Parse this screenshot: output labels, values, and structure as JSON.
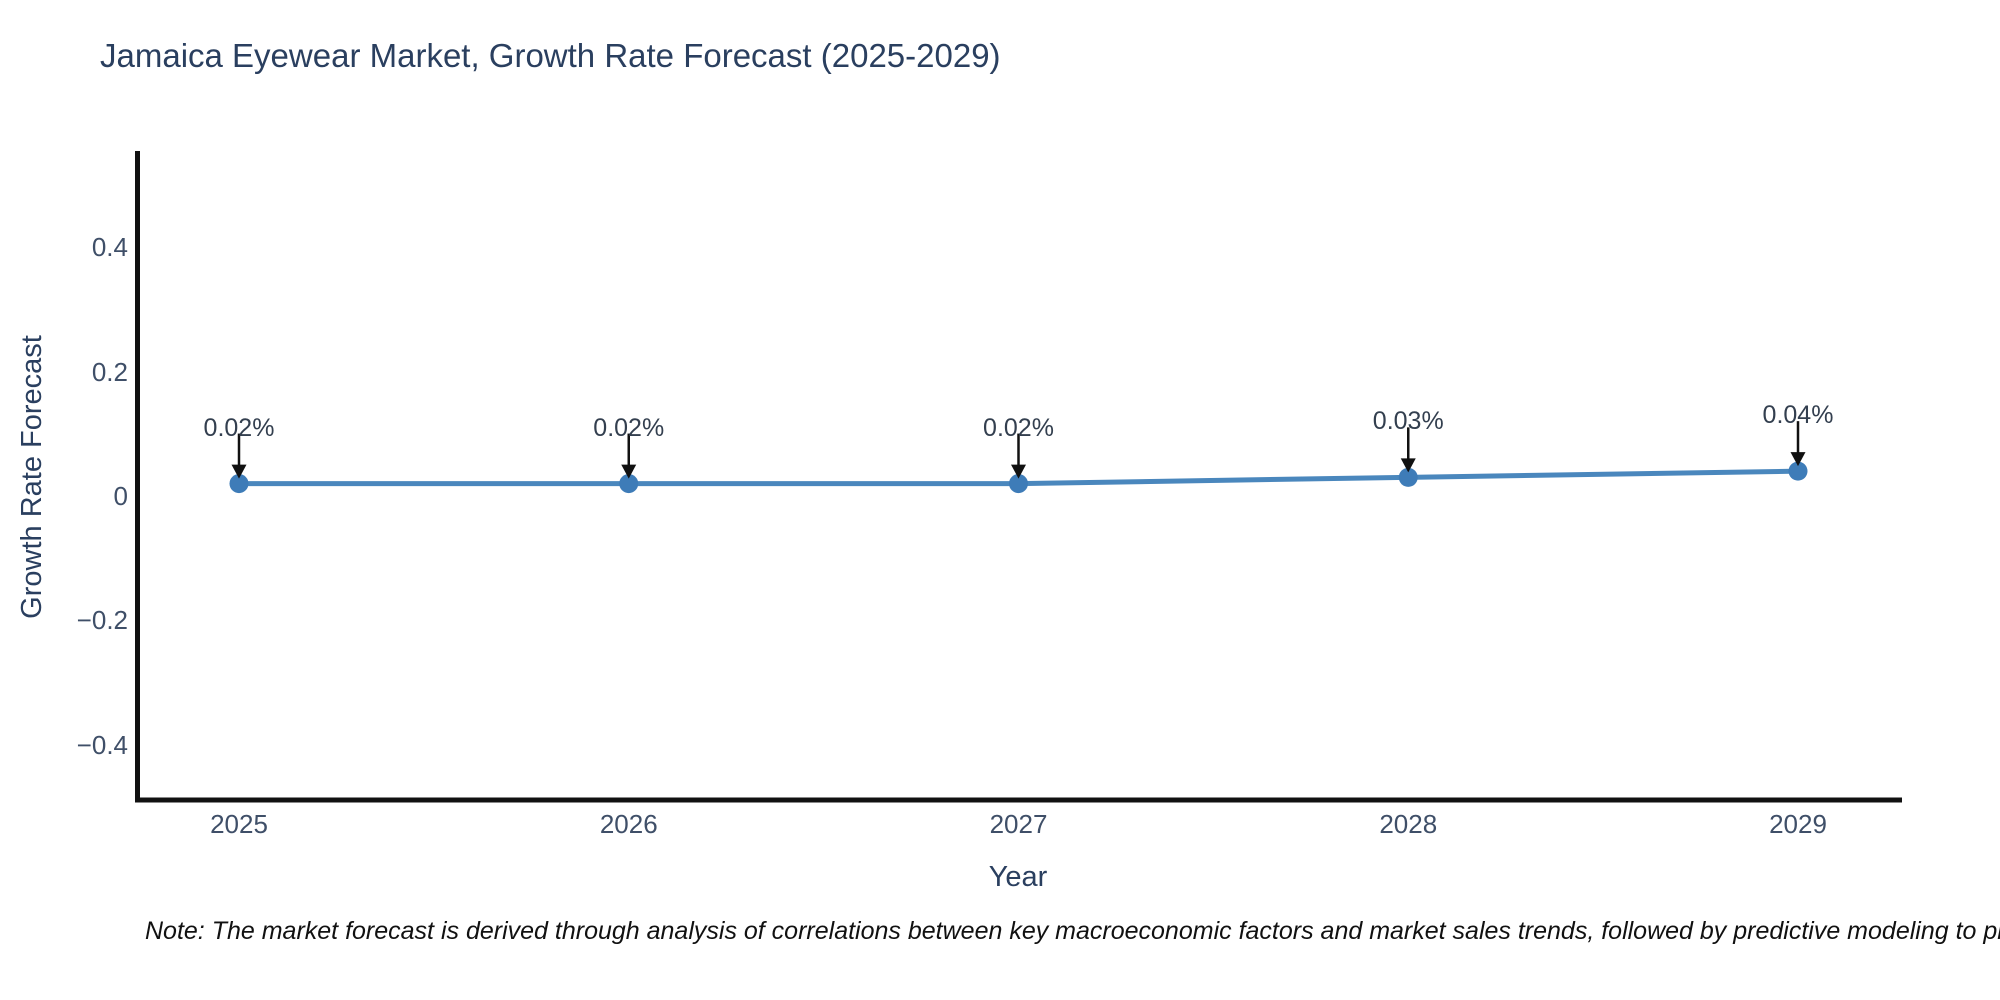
{
  "chart_data": {
    "type": "line",
    "title": "Jamaica Eyewear Market, Growth Rate Forecast (2025-2029)",
    "xlabel": "Year",
    "ylabel": "Growth Rate Forecast",
    "x": [
      2025,
      2026,
      2027,
      2028,
      2029
    ],
    "series": [
      {
        "name": "Growth Rate Forecast",
        "values": [
          0.02,
          0.02,
          0.02,
          0.03,
          0.04
        ]
      }
    ],
    "point_labels": [
      "0.02%",
      "0.02%",
      "0.02%",
      "0.03%",
      "0.04%"
    ],
    "y_ticks": [
      {
        "label": "0.4",
        "value": 0.4
      },
      {
        "label": "0.2",
        "value": 0.2
      },
      {
        "label": "0",
        "value": 0.0
      },
      {
        "label": "−0.2",
        "value": -0.2
      },
      {
        "label": "−0.4",
        "value": -0.4
      }
    ],
    "ylim": [
      -0.49,
      0.55
    ],
    "grid": false,
    "legend": "none",
    "annotation_arrow": "black-down-arrow",
    "colors": {
      "line": "#4a87bd",
      "marker": "#3e7cb8",
      "axis_spine": "#111111",
      "arrow": "#111111",
      "title_text": "#2a3f5f",
      "tick_text": "#3f4f68",
      "annotation_text": "#333f4f",
      "background": "#ffffff"
    }
  },
  "note": {
    "text": "Note: The market forecast is derived through analysis of correlations between key macroeconomic factors and market sales trends, followed by predictive modeling to project future sa"
  }
}
